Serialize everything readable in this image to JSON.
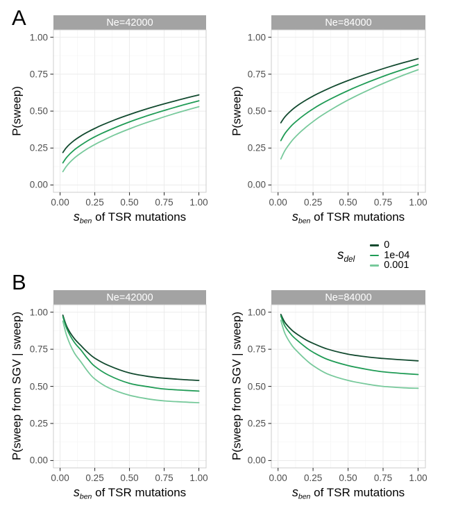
{
  "figure": {
    "panel_labels": {
      "a": "A",
      "b": "B"
    },
    "colors": {
      "sdel_0": "#11492E",
      "sdel_1e04": "#1F9B55",
      "sdel_0001": "#77C99B",
      "strip_bg": "#A3A3A3",
      "strip_text": "#FFFFFF",
      "grid_major": "#EBEBEB",
      "grid_minor": "#F6F6F6",
      "panel_border": "#CCCCCC",
      "axis_text": "#4D4D4D",
      "tick_mark": "#333333"
    },
    "x_axis": {
      "title": {
        "lead_italic": "s",
        "subscript": "ben",
        "rest": " of TSR mutations"
      },
      "tick_labels": [
        "0.00",
        "0.25",
        "0.50",
        "0.75",
        "1.00"
      ],
      "tick_values": [
        0,
        0.25,
        0.5,
        0.75,
        1
      ]
    },
    "y_axis": {
      "title_top": "P(sweep)",
      "title_bottom": "P(sweep from SGV | sweep)",
      "tick_labels": [
        "0.00",
        "0.25",
        "0.50",
        "0.75",
        "1.00"
      ],
      "tick_values": [
        0,
        0.25,
        0.5,
        0.75,
        1
      ]
    },
    "legend": {
      "title": {
        "lead_italic": "s",
        "subscript": "del"
      },
      "items": [
        {
          "label": "0",
          "color": "#11492E"
        },
        {
          "label": "1e-04",
          "color": "#1F9B55"
        },
        {
          "label": "0.001",
          "color": "#77C99B"
        }
      ]
    }
  },
  "chart_data": [
    {
      "type": "line",
      "panel": "A",
      "facet": "Ne=42000",
      "xlabel": "s_ben of TSR mutations",
      "ylabel": "P(sweep)",
      "xlim": [
        0,
        1
      ],
      "ylim": [
        0,
        1
      ],
      "grid": true,
      "x": [
        0.02,
        0.05,
        0.1,
        0.15,
        0.2,
        0.25,
        0.3,
        0.4,
        0.5,
        0.6,
        0.7,
        0.8,
        0.9,
        1.0
      ],
      "series": [
        {
          "name": "0",
          "color": "#11492E",
          "y": [
            0.22,
            0.258,
            0.3,
            0.332,
            0.359,
            0.383,
            0.405,
            0.443,
            0.477,
            0.508,
            0.536,
            0.562,
            0.587,
            0.61
          ]
        },
        {
          "name": "1e-04",
          "color": "#1F9B55",
          "y": [
            0.15,
            0.19,
            0.236,
            0.27,
            0.3,
            0.326,
            0.349,
            0.39,
            0.427,
            0.46,
            0.49,
            0.518,
            0.545,
            0.57
          ]
        },
        {
          "name": "0.001",
          "color": "#77C99B",
          "y": [
            0.09,
            0.132,
            0.18,
            0.216,
            0.247,
            0.274,
            0.298,
            0.342,
            0.38,
            0.415,
            0.446,
            0.476,
            0.504,
            0.53
          ]
        }
      ]
    },
    {
      "type": "line",
      "panel": "A",
      "facet": "Ne=84000",
      "xlabel": "s_ben of TSR mutations",
      "ylabel": "P(sweep)",
      "xlim": [
        0,
        1
      ],
      "ylim": [
        0,
        1
      ],
      "grid": true,
      "x": [
        0.02,
        0.05,
        0.1,
        0.15,
        0.2,
        0.25,
        0.3,
        0.4,
        0.5,
        0.6,
        0.7,
        0.8,
        0.9,
        1.0
      ],
      "series": [
        {
          "name": "0",
          "color": "#11492E",
          "y": [
            0.421,
            0.462,
            0.509,
            0.545,
            0.575,
            0.602,
            0.626,
            0.669,
            0.707,
            0.741,
            0.772,
            0.802,
            0.829,
            0.855
          ]
        },
        {
          "name": "1e-04",
          "color": "#1F9B55",
          "y": [
            0.3,
            0.349,
            0.405,
            0.447,
            0.483,
            0.515,
            0.544,
            0.594,
            0.639,
            0.68,
            0.717,
            0.752,
            0.784,
            0.815
          ]
        },
        {
          "name": "0.001",
          "color": "#77C99B",
          "y": [
            0.176,
            0.234,
            0.3,
            0.35,
            0.392,
            0.429,
            0.463,
            0.522,
            0.575,
            0.622,
            0.666,
            0.707,
            0.745,
            0.78
          ]
        }
      ]
    },
    {
      "type": "line",
      "panel": "B",
      "facet": "Ne=42000",
      "xlabel": "s_ben of TSR mutations",
      "ylabel": "P(sweep from SGV | sweep)",
      "xlim": [
        0,
        1
      ],
      "ylim": [
        0,
        1
      ],
      "grid": true,
      "x": [
        0.02,
        0.05,
        0.1,
        0.15,
        0.2,
        0.25,
        0.35,
        0.5,
        0.65,
        0.75,
        0.9,
        1.0
      ],
      "series": [
        {
          "name": "0",
          "color": "#11492E",
          "y": [
            0.98,
            0.9,
            0.825,
            0.775,
            0.728,
            0.69,
            0.64,
            0.59,
            0.565,
            0.555,
            0.545,
            0.54
          ]
        },
        {
          "name": "1e-04",
          "color": "#1F9B55",
          "y": [
            0.97,
            0.885,
            0.8,
            0.745,
            0.685,
            0.635,
            0.575,
            0.52,
            0.495,
            0.482,
            0.473,
            0.468
          ]
        },
        {
          "name": "0.001",
          "color": "#77C99B",
          "y": [
            0.94,
            0.835,
            0.73,
            0.665,
            0.6,
            0.55,
            0.49,
            0.44,
            0.413,
            0.402,
            0.394,
            0.39
          ]
        }
      ]
    },
    {
      "type": "line",
      "panel": "B",
      "facet": "Ne=84000",
      "xlabel": "s_ben of TSR mutations",
      "ylabel": "P(sweep from SGV | sweep)",
      "xlim": [
        0,
        1
      ],
      "ylim": [
        0,
        1
      ],
      "grid": true,
      "x": [
        0.02,
        0.05,
        0.1,
        0.15,
        0.2,
        0.25,
        0.35,
        0.5,
        0.65,
        0.75,
        0.9,
        1.0
      ],
      "series": [
        {
          "name": "0",
          "color": "#11492E",
          "y": [
            0.985,
            0.93,
            0.878,
            0.843,
            0.813,
            0.79,
            0.752,
            0.717,
            0.697,
            0.688,
            0.678,
            0.672
          ]
        },
        {
          "name": "1e-04",
          "color": "#1F9B55",
          "y": [
            0.975,
            0.905,
            0.843,
            0.8,
            0.762,
            0.73,
            0.683,
            0.64,
            0.612,
            0.598,
            0.586,
            0.58
          ]
        },
        {
          "name": "0.001",
          "color": "#77C99B",
          "y": [
            0.945,
            0.855,
            0.775,
            0.723,
            0.678,
            0.64,
            0.585,
            0.54,
            0.513,
            0.5,
            0.49,
            0.487
          ]
        }
      ]
    }
  ]
}
